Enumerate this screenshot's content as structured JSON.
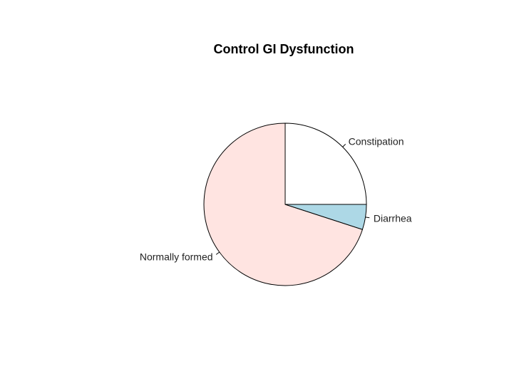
{
  "chart_data": {
    "type": "pie",
    "title": "Control GI Dysfunction",
    "categories": [
      "Constipation",
      "Normally formed",
      "Diarrhea"
    ],
    "values": [
      25,
      70,
      5
    ],
    "colors": [
      "#ffffff",
      "#ffe4e1",
      "#add8e6"
    ],
    "start_angle_deg": 0,
    "direction": "counterclockwise",
    "legend": "none"
  }
}
